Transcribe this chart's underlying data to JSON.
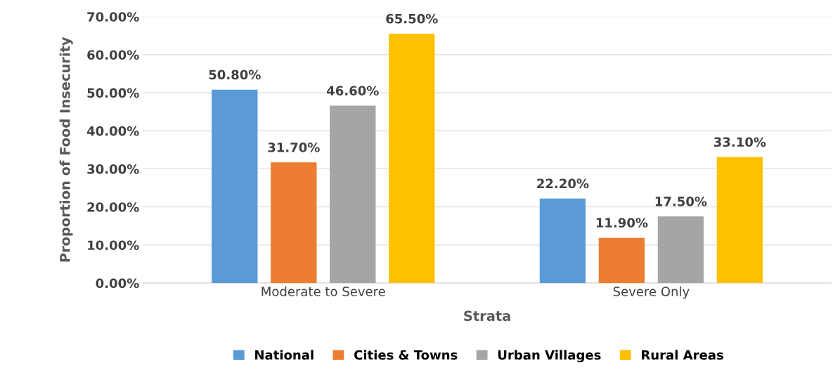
{
  "chart_data": {
    "type": "bar",
    "xlabel": "Strata",
    "ylabel": "Proportion of Food Insecurity",
    "categories": [
      "Moderate to Severe",
      "Severe Only"
    ],
    "series": [
      {
        "name": "National",
        "color": "#5b9bd5",
        "values": [
          50.8,
          22.2
        ],
        "value_labels": [
          "50.80%",
          "22.20%"
        ]
      },
      {
        "name": "Cities & Towns",
        "color": "#ed7d31",
        "values": [
          31.7,
          11.9
        ],
        "value_labels": [
          "31.70%",
          "11.90%"
        ]
      },
      {
        "name": "Urban Villages",
        "color": "#a5a5a5",
        "values": [
          46.6,
          17.5
        ],
        "value_labels": [
          "46.60%",
          "17.50%"
        ]
      },
      {
        "name": "Rural Areas",
        "color": "#ffc000",
        "values": [
          65.5,
          33.1
        ],
        "value_labels": [
          "65.50%",
          "33.10%"
        ]
      }
    ],
    "ylim": [
      0,
      70
    ],
    "yticks": [
      {
        "value": 0,
        "label": "0.00%"
      },
      {
        "value": 10,
        "label": "10.00%"
      },
      {
        "value": 20,
        "label": "20.00%"
      },
      {
        "value": 30,
        "label": "30.00%"
      },
      {
        "value": 40,
        "label": "40.00%"
      },
      {
        "value": 50,
        "label": "50.00%"
      },
      {
        "value": 60,
        "label": "60.00%"
      },
      {
        "value": 70,
        "label": "70.00%"
      }
    ],
    "grid": "y",
    "legend": "bottom"
  }
}
